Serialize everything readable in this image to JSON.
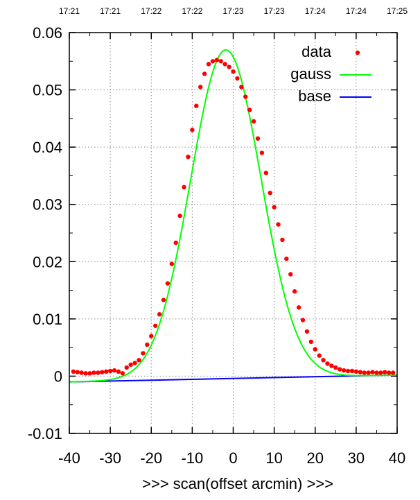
{
  "chart_data": {
    "type": "scatter",
    "title": "",
    "xlabel": ">>> scan(offset arcmin) >>>",
    "ylabel": "",
    "xlim": [
      -40,
      40
    ],
    "ylim": [
      -0.01,
      0.06
    ],
    "grid": true,
    "legend_position": "top-right",
    "x_ticks": [
      -40,
      -30,
      -20,
      -10,
      0,
      10,
      20,
      30,
      40
    ],
    "x_tick_labels": [
      "-40",
      "-30",
      "-20",
      "-10",
      "0",
      "10",
      "20",
      "30",
      "40"
    ],
    "y_ticks": [
      -0.01,
      0,
      0.01,
      0.02,
      0.03,
      0.04,
      0.05,
      0.06
    ],
    "y_tick_labels": [
      "-0.01",
      "0",
      "0.01",
      "0.02",
      "0.03",
      "0.04",
      "0.05",
      "0.06"
    ],
    "top_time_labels": [
      "17:21",
      "17:21",
      "17:22",
      "17:22",
      "17:23",
      "17:23",
      "17:24",
      "17:24",
      "17:25"
    ],
    "series": [
      {
        "name": "data",
        "kind": "points",
        "color": "#ff0000",
        "x": [
          -39,
          -38,
          -37,
          -36,
          -35,
          -34,
          -33,
          -32,
          -31,
          -30,
          -29,
          -28,
          -27,
          -26,
          -25,
          -24,
          -23,
          -22,
          -21,
          -20,
          -19,
          -18,
          -17,
          -16,
          -15,
          -14,
          -13,
          -12,
          -11,
          -10,
          -9,
          -8,
          -7,
          -6,
          -5,
          -4,
          -3,
          -2,
          -1,
          0,
          1,
          2,
          3,
          4,
          5,
          6,
          7,
          8,
          9,
          10,
          11,
          12,
          13,
          14,
          15,
          16,
          17,
          18,
          19,
          20,
          21,
          22,
          23,
          24,
          25,
          26,
          27,
          28,
          29,
          30,
          31,
          32,
          33,
          34,
          35,
          36,
          37,
          38,
          39
        ],
        "y": [
          0.0008,
          0.0007,
          0.0006,
          0.0005,
          0.0005,
          0.0006,
          0.0006,
          0.0007,
          0.0008,
          0.0009,
          0.001,
          0.0008,
          0.0005,
          0.0015,
          0.002,
          0.0023,
          0.0028,
          0.004,
          0.0055,
          0.007,
          0.0088,
          0.0108,
          0.0133,
          0.0162,
          0.0196,
          0.0233,
          0.028,
          0.033,
          0.0383,
          0.043,
          0.0472,
          0.0505,
          0.0528,
          0.0545,
          0.055,
          0.0552,
          0.055,
          0.0545,
          0.054,
          0.0532,
          0.052,
          0.0505,
          0.0488,
          0.0465,
          0.0445,
          0.0415,
          0.039,
          0.0355,
          0.032,
          0.0295,
          0.0265,
          0.0238,
          0.0205,
          0.0178,
          0.0148,
          0.012,
          0.0098,
          0.0078,
          0.006,
          0.0047,
          0.0036,
          0.0028,
          0.0022,
          0.0018,
          0.0015,
          0.0012,
          0.001,
          0.0009,
          0.0009,
          0.0008,
          0.0007,
          0.0006,
          0.0006,
          0.0007,
          0.0006,
          0.0006,
          0.0007,
          0.0006,
          0.0006
        ]
      },
      {
        "name": "gauss",
        "kind": "gaussian",
        "color": "#00ff00",
        "amplitude": 0.0574,
        "center": -1.8,
        "sigma": 8.6,
        "offset_at_minus40": -0.001,
        "offset_at_plus40": 0.0002
      },
      {
        "name": "base",
        "kind": "line",
        "color": "#0000ff",
        "x": [
          -40,
          40
        ],
        "y": [
          -0.001,
          0.0002
        ]
      }
    ]
  }
}
